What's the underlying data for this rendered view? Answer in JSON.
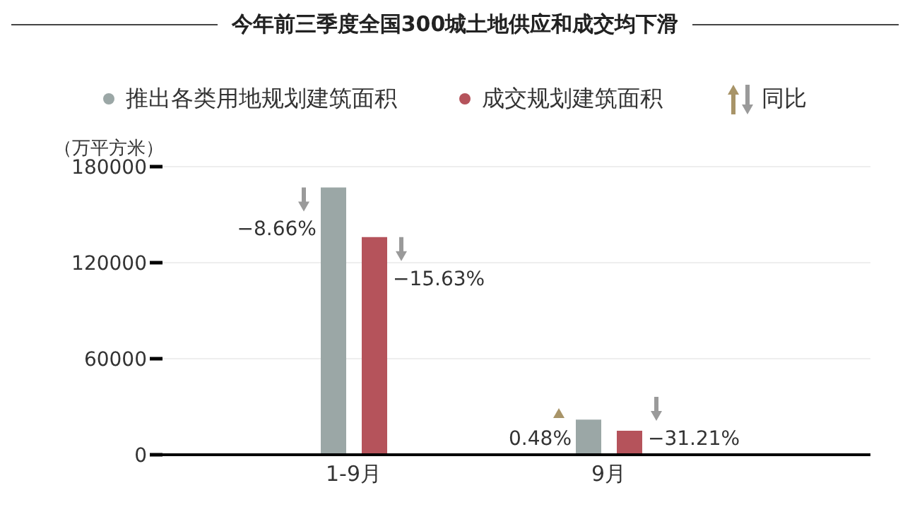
{
  "chart_data": {
    "type": "bar",
    "title": "今年前三季度全国300城土地供应和成交均下滑",
    "ylabel": "（万平方米）",
    "categories": [
      "1-9月",
      "9月"
    ],
    "series": [
      {
        "name": "推出各类用地规划建筑面积",
        "color": "#9ba7a6",
        "values": [
          167000,
          22000
        ]
      },
      {
        "name": "成交规划建筑面积",
        "color": "#b5535b",
        "values": [
          136000,
          15000
        ]
      }
    ],
    "ylim": [
      0,
      180000
    ],
    "yticks": [
      0,
      60000,
      120000,
      180000
    ],
    "grid": "y",
    "legend": "top",
    "annotations": [
      "−8.66%",
      "−15.63%",
      "0.48%",
      "−31.21%",
      "同比"
    ]
  }
}
